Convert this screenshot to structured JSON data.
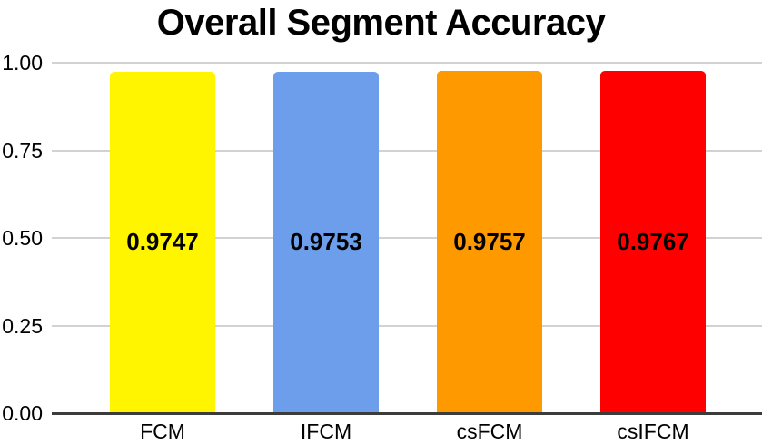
{
  "chart_data": {
    "type": "bar",
    "title": "Overall Segment Accuracy",
    "categories": [
      "FCM",
      "IFCM",
      "csFCM",
      "csIFCM"
    ],
    "values": [
      0.9747,
      0.9753,
      0.9757,
      0.9767
    ],
    "value_labels": [
      "0.9747",
      "0.9753",
      "0.9757",
      "0.9767"
    ],
    "bar_colors": [
      "#FFF500",
      "#6D9EEB",
      "#FF9900",
      "#FF0000"
    ],
    "xlabel": "",
    "ylabel": "",
    "ylim": [
      0,
      1
    ],
    "yticks": [
      {
        "label": "1.00",
        "value": 1.0
      },
      {
        "label": "0.75",
        "value": 0.75
      },
      {
        "label": "0.50",
        "value": 0.5
      },
      {
        "label": "0.25",
        "value": 0.25
      },
      {
        "label": "0.00",
        "value": 0.0
      }
    ],
    "grid": true,
    "legend": false,
    "colors": {
      "text": "#000000",
      "gridline": "#d2d2d2",
      "axis_line": "#3c3c3c",
      "background": "#ffffff"
    }
  }
}
